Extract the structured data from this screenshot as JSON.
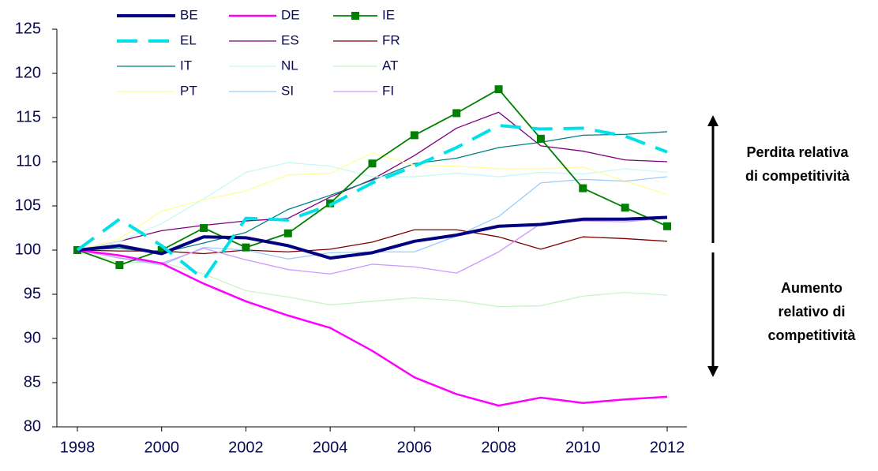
{
  "chart_data": {
    "type": "line",
    "x": [
      1998,
      1999,
      2000,
      2001,
      2002,
      2003,
      2004,
      2005,
      2006,
      2007,
      2008,
      2009,
      2010,
      2011,
      2012
    ],
    "xlim": [
      1998,
      2012
    ],
    "xticks": [
      1998,
      2000,
      2002,
      2004,
      2006,
      2008,
      2010,
      2012
    ],
    "ylim": [
      80,
      125
    ],
    "yticks": [
      80,
      85,
      90,
      95,
      100,
      105,
      110,
      115,
      120,
      125
    ],
    "series": [
      {
        "name": "BE",
        "color": "#000080",
        "width": 4,
        "values": [
          100,
          100.5,
          99.6,
          101.5,
          101.4,
          100.5,
          99.1,
          99.7,
          101,
          101.7,
          102.7,
          102.9,
          103.5,
          103.5,
          103.7
        ]
      },
      {
        "name": "DE",
        "color": "#ff00ff",
        "width": 2.5,
        "values": [
          100,
          99.4,
          98.5,
          96.2,
          94.2,
          92.6,
          91.2,
          88.6,
          85.6,
          83.7,
          82.4,
          83.3,
          82.7,
          83.1,
          83.4
        ]
      },
      {
        "name": "IE",
        "color": "#008000",
        "width": 1.8,
        "marker": "square",
        "values": [
          100,
          98.3,
          100,
          102.5,
          100.3,
          101.9,
          105.3,
          109.8,
          113,
          115.5,
          118.2,
          112.6,
          107,
          104.8,
          102.7
        ]
      },
      {
        "name": "EL",
        "color": "#00e0e8",
        "width": 4,
        "dash": true,
        "values": [
          100,
          103.5,
          100.5,
          96.7,
          103.6,
          103.4,
          105.1,
          107.6,
          109.5,
          111.6,
          114.1,
          113.7,
          113.8,
          112.9,
          111.1
        ]
      },
      {
        "name": "ES",
        "color": "#800080",
        "width": 1.3,
        "values": [
          100,
          101,
          102.2,
          102.8,
          103.3,
          103.6,
          106,
          108,
          110.7,
          113.8,
          115.6,
          111.8,
          111.2,
          110.2,
          110
        ]
      },
      {
        "name": "FR",
        "color": "#800000",
        "width": 1.3,
        "values": [
          100,
          99.9,
          99.9,
          99.6,
          100,
          99.8,
          100.1,
          100.9,
          102.3,
          102.3,
          101.5,
          100.1,
          101.5,
          101.3,
          101
        ]
      },
      {
        "name": "IT",
        "color": "#008080",
        "width": 1.3,
        "values": [
          100,
          100.2,
          99.7,
          100.8,
          102,
          104.6,
          106.2,
          107.9,
          109.8,
          110.4,
          111.6,
          112.2,
          113,
          113.1,
          113.4
        ]
      },
      {
        "name": "NL",
        "color": "#c8f8f8",
        "width": 1.3,
        "values": [
          100,
          101,
          103,
          105.8,
          108.8,
          109.9,
          109.5,
          108.3,
          108.3,
          108.7,
          108.3,
          108.8,
          108.6,
          109.2,
          108.8
        ]
      },
      {
        "name": "AT",
        "color": "#c8f5c8",
        "width": 1.3,
        "values": [
          100,
          98.6,
          98.6,
          97.3,
          95.4,
          94.7,
          93.8,
          94.2,
          94.6,
          94.3,
          93.6,
          93.7,
          94.8,
          95.2,
          94.9
        ]
      },
      {
        "name": "PT",
        "color": "#ffff99",
        "width": 1.3,
        "values": [
          100,
          101.3,
          104.4,
          105.7,
          106.7,
          108.5,
          108.7,
          111,
          109.6,
          109.5,
          109.2,
          109.2,
          109.4,
          107.8,
          106.3
        ]
      },
      {
        "name": "SI",
        "color": "#99ccff",
        "width": 1.3,
        "values": [
          100,
          99.1,
          98.3,
          100.3,
          100,
          99,
          99.7,
          99.8,
          99.8,
          101.6,
          103.8,
          107.6,
          108,
          107.8,
          108.3
        ]
      },
      {
        "name": "FI",
        "color": "#cc99ff",
        "width": 1.3,
        "values": [
          100,
          99.1,
          98.5,
          100.2,
          98.9,
          97.8,
          97.3,
          98.4,
          98.1,
          97.4,
          99.8,
          103,
          103.3,
          103.2,
          103.6
        ]
      }
    ],
    "annotations": [
      {
        "lines": [
          "Perdita relativa",
          "di competitività"
        ]
      },
      {
        "lines": [
          "Aumento",
          "relativo di",
          "competitività"
        ]
      }
    ]
  }
}
